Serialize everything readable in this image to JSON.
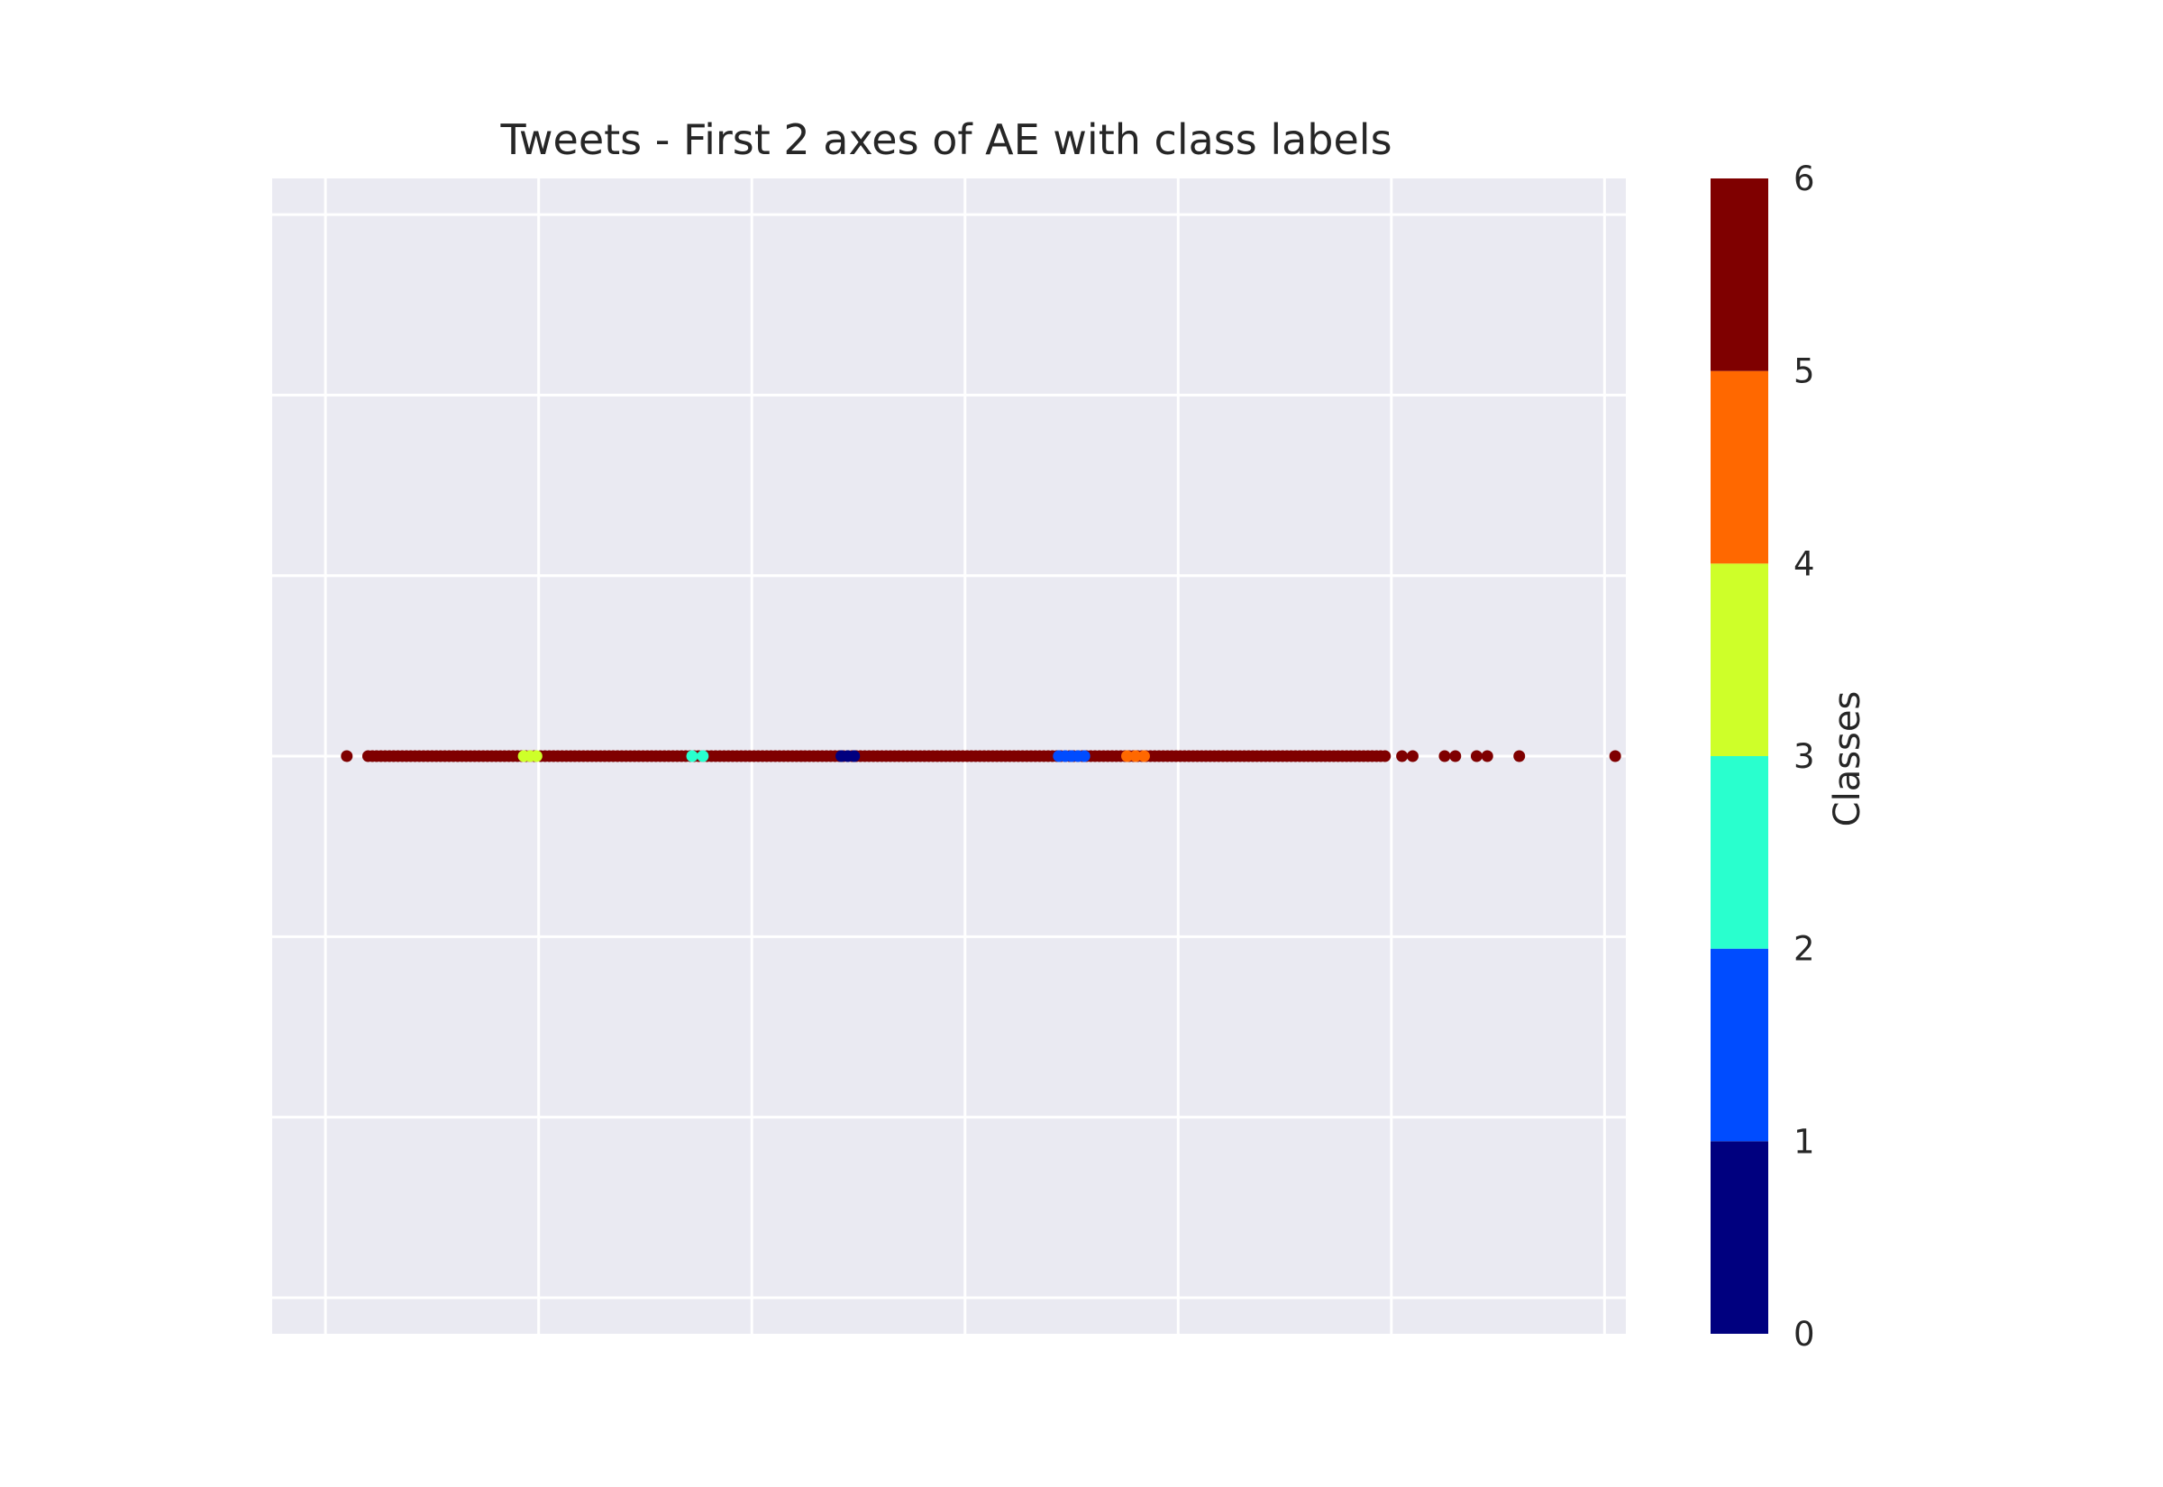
{
  "chart_data": {
    "type": "scatter",
    "title": "Tweets - First 2 axes of AE with class labels",
    "xlabel": "",
    "ylabel": "",
    "x_tick_labels_shown": false,
    "y_tick_labels_shown": false,
    "grid": true,
    "style": "seaborn-darkgrid",
    "background_color": "#EAEAF2",
    "grid_color": "#FFFFFF",
    "y_constant": 0,
    "colorbar": {
      "label": "Classes",
      "colormap": "jet",
      "ticks": [
        "0",
        "1",
        "2",
        "3",
        "4",
        "5",
        "6"
      ],
      "bins": [
        {
          "from": 0,
          "to": 1,
          "color": "#00007F"
        },
        {
          "from": 1,
          "to": 2,
          "color": "#004CFF"
        },
        {
          "from": 2,
          "to": 3,
          "color": "#29FFCE"
        },
        {
          "from": 3,
          "to": 4,
          "color": "#CEFF29"
        },
        {
          "from": 4,
          "to": 5,
          "color": "#FF6800"
        },
        {
          "from": 5,
          "to": 6,
          "color": "#7F0000"
        }
      ]
    },
    "series": [
      {
        "class": 5,
        "color": "#7F0000",
        "x": [
          -0.9,
          -0.8,
          -0.78,
          -0.76,
          -0.74,
          -0.72,
          -0.7,
          -0.68,
          -0.66,
          -0.64,
          -0.62,
          -0.6,
          -0.58,
          -0.56,
          -0.54,
          -0.52,
          -0.5,
          -0.48,
          -0.46,
          -0.44,
          -0.42,
          -0.4,
          -0.38,
          -0.36,
          -0.34,
          -0.32,
          -0.3,
          -0.28,
          -0.26,
          -0.24,
          -0.22,
          -0.2,
          -0.18,
          -0.16,
          -0.14,
          -0.12,
          -0.1,
          -0.08,
          -0.06,
          -0.04,
          -0.02,
          0.01,
          0.03,
          0.05,
          0.07,
          0.09,
          0.11,
          0.13,
          0.15,
          0.17,
          0.19,
          0.21,
          0.23,
          0.25,
          0.27,
          0.29,
          0.31,
          0.33,
          0.35,
          0.37,
          0.39,
          0.41,
          0.43,
          0.45,
          0.47,
          0.49,
          0.51,
          0.53,
          0.55,
          0.57,
          0.59,
          0.61,
          0.63,
          0.65,
          0.67,
          0.69,
          0.71,
          0.73,
          0.75,
          0.77,
          0.79,
          0.81,
          0.83,
          0.85,
          0.87,
          0.89,
          0.91,
          0.93,
          0.95,
          0.97,
          0.99,
          1.01,
          1.03,
          1.05,
          1.07,
          1.09,
          1.11,
          1.13,
          1.15,
          1.17,
          1.19,
          1.21,
          1.23,
          1.25,
          1.27,
          1.29,
          1.31,
          1.33,
          1.35,
          1.37,
          1.39,
          1.41,
          1.43,
          1.45,
          1.47,
          1.49,
          1.51,
          1.53,
          1.55,
          1.57,
          1.59,
          1.61,
          1.63,
          1.65,
          1.67,
          1.69,
          1.71,
          1.73,
          1.75,
          1.77,
          1.79,
          1.81,
          1.83,
          1.85,
          1.87,
          1.89,
          1.91,
          1.93,
          1.95,
          1.97,
          1.99,
          2.01,
          2.03,
          2.05,
          2.07,
          2.09,
          2.11,
          2.13,
          2.15,
          2.17,
          2.19,
          2.21,
          2.23,
          2.25,
          2.27,
          2.29,
          2.31,
          2.33,
          2.35,
          2.37,
          2.39,
          2.41,
          2.43,
          2.45,
          2.47,
          2.49,
          2.51,
          2.53,
          2.55,
          2.57,
          2.59,
          2.61,
          2.63,
          2.65,
          2.67,
          2.69,
          2.71,
          2.73,
          2.75,
          2.77,
          2.79,
          2.81,
          2.83,
          2.85,
          2.87,
          2.89,
          2.91,
          2.93,
          2.95,
          2.97,
          2.99,
          3.01,
          3.03,
          3.05,
          3.07,
          3.09,
          3.11,
          3.13,
          3.15,
          3.17,
          3.19,
          3.21,
          3.23,
          3.25,
          3.27,
          3.29,
          3.31,
          3.33,
          3.35,
          3.37,
          3.39,
          3.41,
          3.43,
          3.45,
          3.47,
          3.49,
          3.51,
          3.53,
          3.55,
          3.57,
          3.59,
          3.61,
          3.63,
          3.65,
          3.67,
          3.69,
          3.71,
          3.73,
          3.75,
          3.77,
          3.79,
          3.81,
          3.83,
          3.85,
          3.87,
          3.89,
          3.91,
          3.93,
          3.95,
          3.97,
          4.05,
          4.1,
          4.25,
          4.3,
          4.4,
          4.45,
          4.6,
          5.05
        ]
      },
      {
        "class": 0,
        "color": "#00007F",
        "x": [
          1.42,
          1.45,
          1.48
        ]
      },
      {
        "class": 1,
        "color": "#004CFF",
        "x": [
          2.44,
          2.47,
          2.5,
          2.53,
          2.56
        ]
      },
      {
        "class": 2,
        "color": "#29FFCE",
        "x": [
          0.72,
          0.77
        ]
      },
      {
        "class": 3,
        "color": "#CEFF29",
        "x": [
          -0.07,
          -0.04,
          -0.01
        ]
      },
      {
        "class": 4,
        "color": "#FF6800",
        "x": [
          2.76,
          2.8,
          2.84
        ]
      }
    ],
    "xlim": [
      -1.25,
      5.1
    ],
    "ylim": [
      -0.016,
      0.016
    ]
  }
}
